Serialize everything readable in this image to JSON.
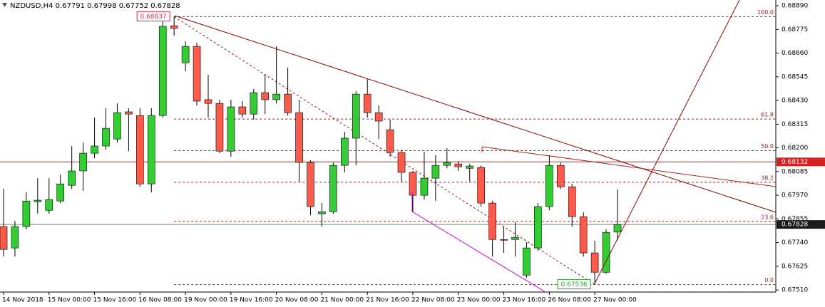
{
  "chart_data": {
    "type": "candlestick",
    "title": "NZDUSD,H4  0.67791 0.67998 0.67752 0.67828",
    "categories": [
      "14 Nov 2018",
      null,
      null,
      null,
      "15 Nov 00:00",
      null,
      null,
      null,
      "15 Nov 16:00",
      null,
      null,
      null,
      "16 Nov 08:00",
      null,
      null,
      null,
      "19 Nov 00:00",
      null,
      null,
      null,
      "19 Nov 16:00",
      null,
      null,
      null,
      "20 Nov 08:00",
      null,
      null,
      null,
      "21 Nov 00:00",
      null,
      null,
      null,
      "21 Nov 16:00",
      null,
      null,
      null,
      "22 Nov 08:00",
      null,
      null,
      null,
      "23 Nov 00:00",
      null,
      null,
      null,
      "23 Nov 16:00",
      null,
      null,
      null,
      "26 Nov 08:00",
      null,
      null,
      null,
      "27 Nov 00:00",
      null,
      null
    ],
    "open": [
      0.67818,
      0.67714,
      0.67818,
      0.67939,
      0.67897,
      0.67942,
      0.68018,
      0.68088,
      0.68174,
      0.68209,
      0.68243,
      0.68375,
      0.68357,
      0.68025,
      0.68357,
      0.68793,
      0.68613,
      0.68693,
      0.68434,
      0.68416,
      0.68184,
      0.68399,
      0.68364,
      0.68468,
      0.68434,
      0.68461,
      0.68371,
      0.68129,
      0.6788,
      0.6789,
      0.68115,
      0.68247,
      0.68461,
      0.68371,
      0.68288,
      0.68178,
      0.68081,
      0.6797,
      0.68053,
      0.68115,
      0.68122,
      0.68101,
      0.68105,
      0.67932,
      0.67755,
      0.67755,
      0.67582,
      0.67714,
      0.67915,
      0.68115,
      0.68011,
      0.67866,
      0.6769,
      0.67596,
      0.67791
    ],
    "high": [
      0.68001,
      0.67845,
      0.67984,
      0.68053,
      0.68053,
      0.6807,
      0.68209,
      0.68226,
      0.68347,
      0.68392,
      0.68416,
      0.68392,
      0.68392,
      0.68392,
      0.68814,
      0.68837,
      0.68717,
      0.6871,
      0.68555,
      0.68434,
      0.68434,
      0.68427,
      0.68486,
      0.68555,
      0.68693,
      0.68589,
      0.68434,
      0.6814,
      0.67932,
      0.68129,
      0.68278,
      0.68475,
      0.68537,
      0.68406,
      0.68337,
      0.68191,
      0.68088,
      0.68181,
      0.68164,
      0.68198,
      0.68136,
      0.68122,
      0.68115,
      0.67942,
      0.67818,
      0.67839,
      0.67742,
      0.67932,
      0.68164,
      0.68129,
      0.68025,
      0.67887,
      0.67749,
      0.67804,
      0.67998
    ],
    "low": [
      0.67672,
      0.67672,
      0.67804,
      0.6788,
      0.6788,
      0.67932,
      0.68001,
      0.67991,
      0.6815,
      0.68191,
      0.68226,
      0.68184,
      0.68011,
      0.67984,
      0.68347,
      0.68745,
      0.68572,
      0.68406,
      0.68347,
      0.68174,
      0.68157,
      0.68347,
      0.68337,
      0.68364,
      0.68416,
      0.68357,
      0.68036,
      0.67873,
      0.67818,
      0.6788,
      0.68081,
      0.68115,
      0.68347,
      0.68243,
      0.68157,
      0.68036,
      0.67887,
      0.67949,
      0.67942,
      0.68101,
      0.68088,
      0.68036,
      0.67915,
      0.67672,
      0.6769,
      0.67672,
      0.67569,
      0.677,
      0.67897,
      0.68001,
      0.67818,
      0.67672,
      0.67536,
      0.67589,
      0.67752
    ],
    "close": [
      0.67707,
      0.67818,
      0.67942,
      0.67946,
      0.67949,
      0.68025,
      0.68088,
      0.68174,
      0.68209,
      0.68295,
      0.68371,
      0.68364,
      0.68025,
      0.68357,
      0.6879,
      0.6878,
      0.68693,
      0.68427,
      0.68416,
      0.68184,
      0.68399,
      0.68364,
      0.68468,
      0.68434,
      0.68461,
      0.68371,
      0.68129,
      0.67915,
      0.6789,
      0.68115,
      0.68247,
      0.68461,
      0.68371,
      0.6833,
      0.68178,
      0.68081,
      0.6797,
      0.68053,
      0.68115,
      0.68129,
      0.68108,
      0.68112,
      0.67932,
      0.67755,
      0.67752,
      0.67766,
      0.67714,
      0.67915,
      0.68115,
      0.68011,
      0.67866,
      0.6769,
      0.67596,
      0.6779,
      0.67828
    ],
    "up_color": "#33cc33",
    "down_color": "#ff5a4a",
    "ylim": [
      0.675,
      0.68918
    ],
    "yticks": [
      {
        "value": 0.6889,
        "label": "0.68890"
      },
      0.68775,
      {
        "value": 0.6866,
        "label": "0.68660"
      },
      0.68545,
      {
        "value": 0.6843,
        "label": "0.68430"
      },
      0.68315,
      {
        "value": 0.682,
        "label": "0.68200"
      },
      0.68085,
      {
        "value": 0.6797,
        "label": "0.67970"
      },
      0.67855,
      {
        "value": 0.6774,
        "label": "0.67740"
      },
      0.67625,
      {
        "value": 0.6751,
        "label": "0.67510"
      }
    ],
    "fibonacci": {
      "high": 0.68837,
      "low": 0.67536,
      "color": "#8b1a1a",
      "levels": [
        {
          "value": 0.68837,
          "label": "100.0"
        },
        {
          "value": 0.6834,
          "label": "61.8"
        },
        {
          "value": 0.68187,
          "label": "50.0"
        },
        {
          "value": 0.68033,
          "label": "38.2"
        },
        {
          "value": 0.67843,
          "label": "23.6"
        },
        {
          "value": 0.67536,
          "label": "0.0"
        }
      ]
    },
    "price_line": {
      "value": 0.68132,
      "color": "#d42020"
    },
    "current_price": 0.67828
  }
}
